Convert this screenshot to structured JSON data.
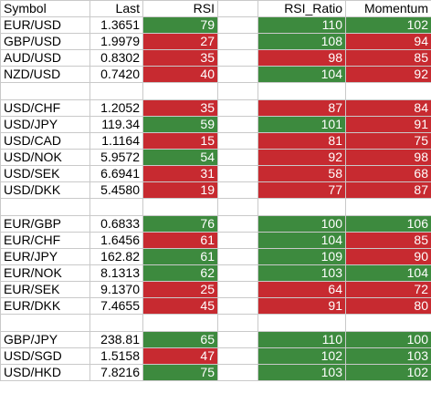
{
  "colors": {
    "green": "#3d8a3e",
    "red": "#c72a30"
  },
  "header": {
    "symbol": "Symbol",
    "last": "Last",
    "rsi": "RSI",
    "rsi_ratio": "RSI_Ratio",
    "momentum": "Momentum"
  },
  "rows": [
    {
      "symbol": "EUR/USD",
      "last": "1.3651",
      "rsi": "79",
      "rsi_color": "green",
      "ratio": "110",
      "ratio_color": "green",
      "momentum": "102",
      "momentum_color": "green"
    },
    {
      "symbol": "GBP/USD",
      "last": "1.9979",
      "rsi": "27",
      "rsi_color": "red",
      "ratio": "108",
      "ratio_color": "green",
      "momentum": "94",
      "momentum_color": "red"
    },
    {
      "symbol": "AUD/USD",
      "last": "0.8302",
      "rsi": "35",
      "rsi_color": "red",
      "ratio": "98",
      "ratio_color": "red",
      "momentum": "85",
      "momentum_color": "red"
    },
    {
      "symbol": "NZD/USD",
      "last": "0.7420",
      "rsi": "40",
      "rsi_color": "red",
      "ratio": "104",
      "ratio_color": "green",
      "momentum": "92",
      "momentum_color": "red"
    },
    {
      "blank": true
    },
    {
      "symbol": "USD/CHF",
      "last": "1.2052",
      "rsi": "35",
      "rsi_color": "red",
      "ratio": "87",
      "ratio_color": "red",
      "momentum": "84",
      "momentum_color": "red"
    },
    {
      "symbol": "USD/JPY",
      "last": "119.34",
      "rsi": "59",
      "rsi_color": "green",
      "ratio": "101",
      "ratio_color": "green",
      "momentum": "91",
      "momentum_color": "red"
    },
    {
      "symbol": "USD/CAD",
      "last": "1.1164",
      "rsi": "15",
      "rsi_color": "red",
      "ratio": "81",
      "ratio_color": "red",
      "momentum": "75",
      "momentum_color": "red"
    },
    {
      "symbol": "USD/NOK",
      "last": "5.9572",
      "rsi": "54",
      "rsi_color": "green",
      "ratio": "92",
      "ratio_color": "red",
      "momentum": "98",
      "momentum_color": "red"
    },
    {
      "symbol": "USD/SEK",
      "last": "6.6941",
      "rsi": "31",
      "rsi_color": "red",
      "ratio": "58",
      "ratio_color": "red",
      "momentum": "68",
      "momentum_color": "red"
    },
    {
      "symbol": "USD/DKK",
      "last": "5.4580",
      "rsi": "19",
      "rsi_color": "red",
      "ratio": "77",
      "ratio_color": "red",
      "momentum": "87",
      "momentum_color": "red"
    },
    {
      "blank": true
    },
    {
      "symbol": "EUR/GBP",
      "last": "0.6833",
      "rsi": "76",
      "rsi_color": "green",
      "ratio": "100",
      "ratio_color": "green",
      "momentum": "106",
      "momentum_color": "green"
    },
    {
      "symbol": "EUR/CHF",
      "last": "1.6456",
      "rsi": "61",
      "rsi_color": "red",
      "ratio": "104",
      "ratio_color": "green",
      "momentum": "85",
      "momentum_color": "red"
    },
    {
      "symbol": "EUR/JPY",
      "last": "162.82",
      "rsi": "61",
      "rsi_color": "green",
      "ratio": "109",
      "ratio_color": "green",
      "momentum": "90",
      "momentum_color": "red"
    },
    {
      "symbol": "EUR/NOK",
      "last": "8.1313",
      "rsi": "62",
      "rsi_color": "green",
      "ratio": "103",
      "ratio_color": "green",
      "momentum": "104",
      "momentum_color": "green"
    },
    {
      "symbol": "EUR/SEK",
      "last": "9.1370",
      "rsi": "25",
      "rsi_color": "red",
      "ratio": "64",
      "ratio_color": "red",
      "momentum": "72",
      "momentum_color": "red"
    },
    {
      "symbol": "EUR/DKK",
      "last": "7.4655",
      "rsi": "45",
      "rsi_color": "red",
      "ratio": "91",
      "ratio_color": "red",
      "momentum": "80",
      "momentum_color": "red"
    },
    {
      "blank": true
    },
    {
      "symbol": "GBP/JPY",
      "last": "238.81",
      "rsi": "65",
      "rsi_color": "green",
      "ratio": "110",
      "ratio_color": "green",
      "momentum": "100",
      "momentum_color": "green"
    },
    {
      "symbol": "USD/SGD",
      "last": "1.5158",
      "rsi": "47",
      "rsi_color": "red",
      "ratio": "102",
      "ratio_color": "green",
      "momentum": "103",
      "momentum_color": "green"
    },
    {
      "symbol": "USD/HKD",
      "last": "7.8216",
      "rsi": "75",
      "rsi_color": "green",
      "ratio": "103",
      "ratio_color": "green",
      "momentum": "102",
      "momentum_color": "green"
    }
  ]
}
